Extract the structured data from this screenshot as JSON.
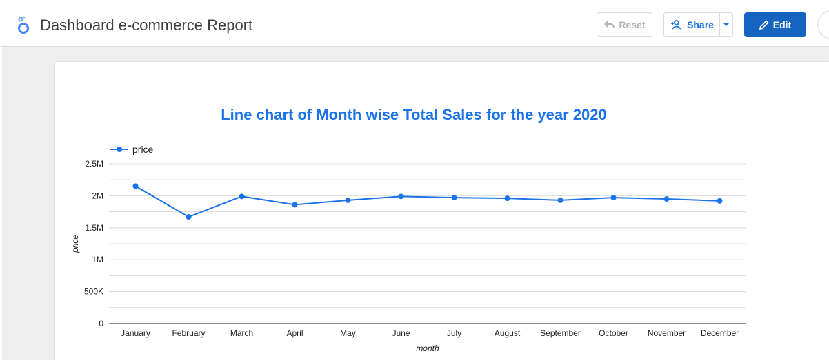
{
  "header": {
    "title": "Dashboard e-commerce Report",
    "reset_label": "Reset",
    "share_label": "Share",
    "edit_label": "Edit"
  },
  "icons": {
    "logo": "looker-studio-logo-icon",
    "reset": "undo-icon",
    "share": "person-add-icon",
    "dropdown": "caret-down-icon",
    "edit": "pencil-icon"
  },
  "colors": {
    "accent": "#1a73e8",
    "edit_button": "#1565c0",
    "series": "#1a73e8"
  },
  "chart_data": {
    "type": "line",
    "title": "Line chart of Month wise Total Sales for the year 2020",
    "xlabel": "month",
    "ylabel": "price",
    "categories": [
      "January",
      "February",
      "March",
      "April",
      "May",
      "June",
      "July",
      "August",
      "September",
      "October",
      "November",
      "December"
    ],
    "series": [
      {
        "name": "price",
        "values": [
          2150000,
          1670000,
          1990000,
          1860000,
          1930000,
          1990000,
          1970000,
          1960000,
          1930000,
          1970000,
          1950000,
          1920000
        ]
      }
    ],
    "yticks": [
      {
        "value": 0,
        "label": "0"
      },
      {
        "value": 500000,
        "label": "500K"
      },
      {
        "value": 1000000,
        "label": "1M"
      },
      {
        "value": 1500000,
        "label": "1.5M"
      },
      {
        "value": 2000000,
        "label": "2M"
      },
      {
        "value": 2500000,
        "label": "2.5M"
      }
    ],
    "ylim": [
      0,
      2500000
    ],
    "grid": true,
    "legend_position": "top-left"
  }
}
